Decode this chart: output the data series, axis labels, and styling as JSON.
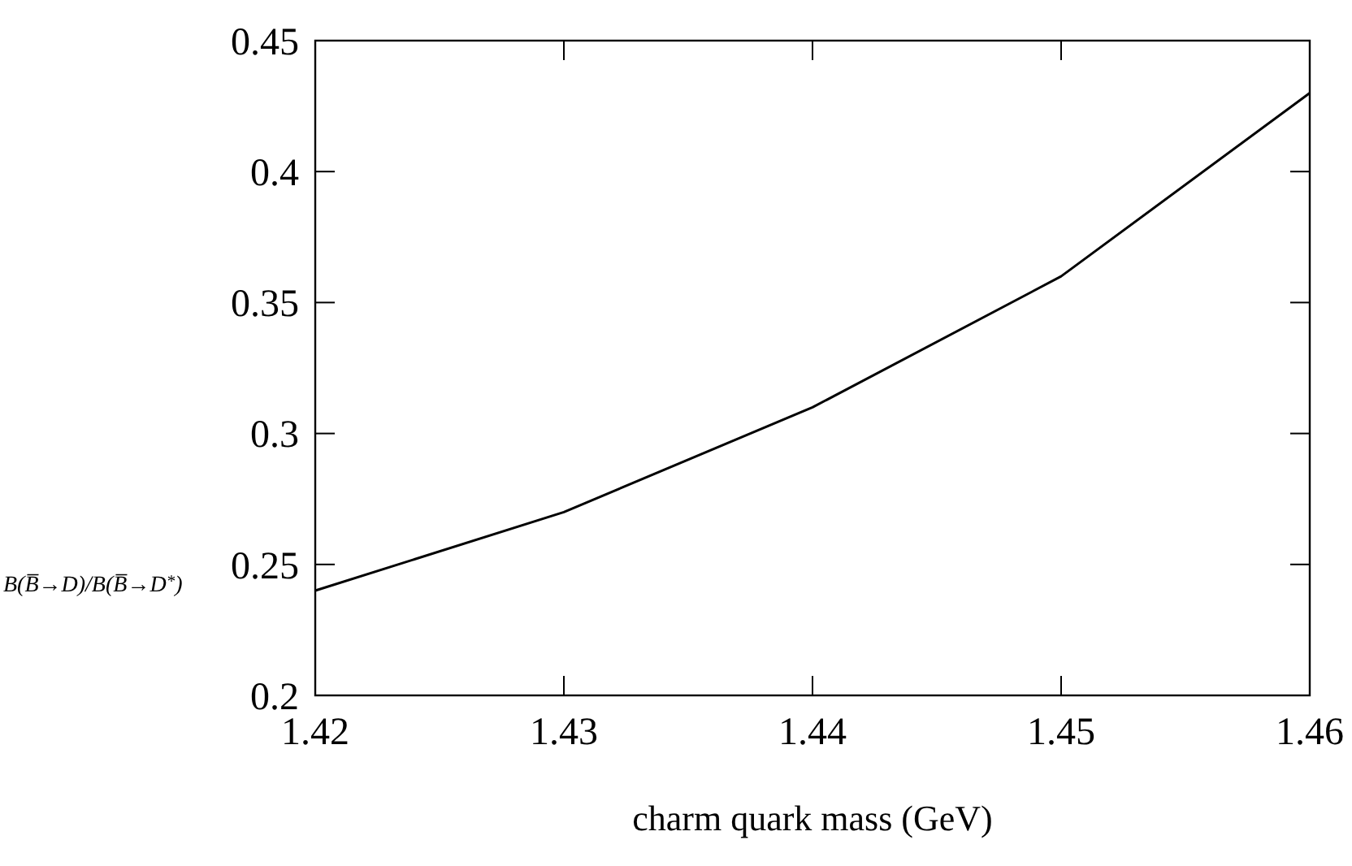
{
  "chart_data": {
    "type": "line",
    "xlabel": "charm quark mass (GeV)",
    "ylabel": "B(B̅→D)/B(B̅→D$^{*}$)",
    "x": [
      1.42,
      1.43,
      1.44,
      1.45,
      1.46
    ],
    "series": [
      {
        "color": "#000000",
        "values": [
          0.24,
          0.27,
          0.31,
          0.36,
          0.43
        ]
      }
    ],
    "xlim": [
      1.42,
      1.46
    ],
    "xticks": [
      1.42,
      1.43,
      1.44,
      1.45,
      1.46
    ],
    "ylim": [
      0.2,
      0.45
    ],
    "yticks": [
      0.2,
      0.25,
      0.3,
      0.35,
      0.4,
      0.45
    ],
    "grid": false,
    "marker": "none",
    "line_style": "solid"
  }
}
